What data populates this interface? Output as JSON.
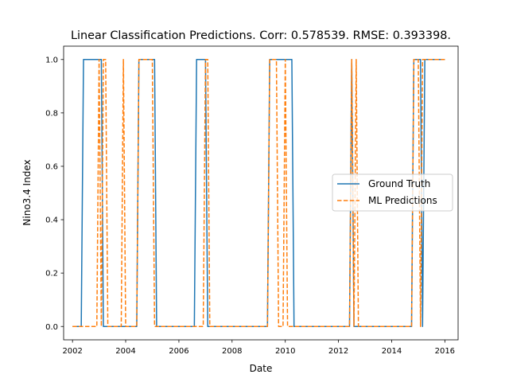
{
  "chart_data": {
    "type": "line",
    "title": "Linear Classification Predictions. Corr: 0.578539. RMSE: 0.393398.",
    "xlabel": "Date",
    "ylabel": "Nino3.4 Index",
    "xlim": [
      "2001-09-01",
      "2016-07-01"
    ],
    "ylim": [
      -0.05,
      1.05
    ],
    "x_ticks": [
      "2002",
      "2004",
      "2006",
      "2008",
      "2010",
      "2012",
      "2014",
      "2016"
    ],
    "y_ticks": [
      "0.0",
      "0.2",
      "0.4",
      "0.6",
      "0.8",
      "1.0"
    ],
    "grid": false,
    "legend_position": "center-right",
    "series": [
      {
        "name": "Ground Truth",
        "color": "#1f77b4",
        "style": "solid",
        "points": [
          [
            "2002-01-01",
            0
          ],
          [
            "2002-05-01",
            0
          ],
          [
            "2002-06-01",
            1
          ],
          [
            "2003-02-01",
            1
          ],
          [
            "2003-03-01",
            0
          ],
          [
            "2004-06-01",
            0
          ],
          [
            "2004-07-01",
            1
          ],
          [
            "2005-02-01",
            1
          ],
          [
            "2005-03-01",
            0
          ],
          [
            "2006-08-01",
            0
          ],
          [
            "2006-09-01",
            1
          ],
          [
            "2007-01-01",
            1
          ],
          [
            "2007-02-01",
            0
          ],
          [
            "2009-05-01",
            0
          ],
          [
            "2009-06-01",
            1
          ],
          [
            "2010-04-01",
            1
          ],
          [
            "2010-05-01",
            0
          ],
          [
            "2012-06-01",
            0
          ],
          [
            "2012-07-01",
            1
          ],
          [
            "2012-08-01",
            0
          ],
          [
            "2014-10-01",
            0
          ],
          [
            "2014-11-01",
            1
          ],
          [
            "2015-02-01",
            1
          ],
          [
            "2015-03-01",
            0
          ],
          [
            "2015-04-01",
            1
          ],
          [
            "2016-01-01",
            1
          ]
        ]
      },
      {
        "name": "ML Predictions",
        "color": "#ff7f0e",
        "style": "dashed",
        "points": [
          [
            "2002-01-01",
            0
          ],
          [
            "2002-12-01",
            0
          ],
          [
            "2003-01-01",
            1
          ],
          [
            "2003-02-01",
            0
          ],
          [
            "2003-03-01",
            1
          ],
          [
            "2003-04-01",
            1
          ],
          [
            "2003-05-01",
            0
          ],
          [
            "2003-11-01",
            0
          ],
          [
            "2003-12-01",
            1
          ],
          [
            "2004-01-01",
            0
          ],
          [
            "2004-06-01",
            0
          ],
          [
            "2004-07-01",
            1
          ],
          [
            "2005-01-01",
            1
          ],
          [
            "2005-02-01",
            0
          ],
          [
            "2006-12-01",
            0
          ],
          [
            "2007-01-01",
            1
          ],
          [
            "2007-02-01",
            1
          ],
          [
            "2007-03-01",
            0
          ],
          [
            "2009-05-01",
            0
          ],
          [
            "2009-06-01",
            1
          ],
          [
            "2009-09-01",
            1
          ],
          [
            "2009-10-01",
            0
          ],
          [
            "2009-12-01",
            0
          ],
          [
            "2010-01-01",
            1
          ],
          [
            "2010-02-01",
            0
          ],
          [
            "2012-06-01",
            0
          ],
          [
            "2012-07-01",
            1
          ],
          [
            "2012-08-01",
            0
          ],
          [
            "2012-09-01",
            1
          ],
          [
            "2012-10-01",
            0
          ],
          [
            "2014-10-01",
            0
          ],
          [
            "2014-11-01",
            1
          ],
          [
            "2015-01-01",
            1
          ],
          [
            "2015-02-01",
            0
          ],
          [
            "2015-03-01",
            1
          ],
          [
            "2016-01-01",
            1
          ]
        ]
      }
    ]
  }
}
